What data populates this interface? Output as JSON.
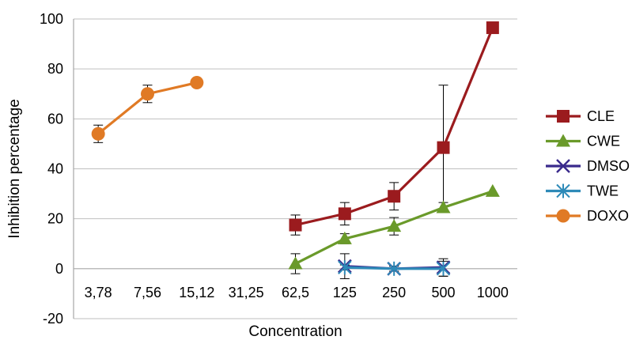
{
  "chart_data": {
    "type": "line",
    "title": "",
    "xlabel": "Concentration",
    "ylabel": "Inhibition percentage",
    "categories": [
      "3,78",
      "7,56",
      "15,12",
      "31,25",
      "62,5",
      "125",
      "250",
      "500",
      "1000"
    ],
    "ylim": [
      -20,
      100
    ],
    "yticks": [
      -20,
      0,
      20,
      40,
      60,
      80,
      100
    ],
    "grid": "horizontal",
    "legend_position": "right",
    "series": [
      {
        "name": "CLE",
        "color": "#9b1b1e",
        "marker": "square",
        "values": [
          null,
          null,
          null,
          null,
          17.5,
          22,
          29,
          48.5,
          96.5
        ],
        "errors": [
          null,
          null,
          null,
          null,
          4,
          4.5,
          5.5,
          25,
          null
        ]
      },
      {
        "name": "CWE",
        "color": "#6a9a2a",
        "marker": "triangle",
        "values": [
          null,
          null,
          null,
          null,
          2,
          12,
          17,
          24.5,
          31
        ],
        "errors": [
          null,
          null,
          null,
          null,
          4,
          2,
          3.5,
          2,
          null
        ]
      },
      {
        "name": "DMSO",
        "color": "#3a2a8c",
        "marker": "x",
        "values": [
          null,
          null,
          null,
          null,
          null,
          1,
          0,
          0.5,
          null
        ],
        "errors": [
          null,
          null,
          null,
          null,
          null,
          5,
          1,
          3.5,
          null
        ]
      },
      {
        "name": "TWE",
        "color": "#2e8ab8",
        "marker": "asterisk",
        "values": [
          null,
          null,
          null,
          null,
          null,
          0.5,
          0,
          0,
          null
        ],
        "errors": [
          null,
          null,
          null,
          null,
          null,
          1,
          1,
          3,
          null
        ]
      },
      {
        "name": "DOXO",
        "color": "#e07a25",
        "marker": "circle",
        "values": [
          54,
          70,
          74.5,
          null,
          null,
          null,
          null,
          null,
          null
        ],
        "errors": [
          3.5,
          3.5,
          null,
          null,
          null,
          null,
          null,
          null,
          null
        ]
      }
    ]
  }
}
